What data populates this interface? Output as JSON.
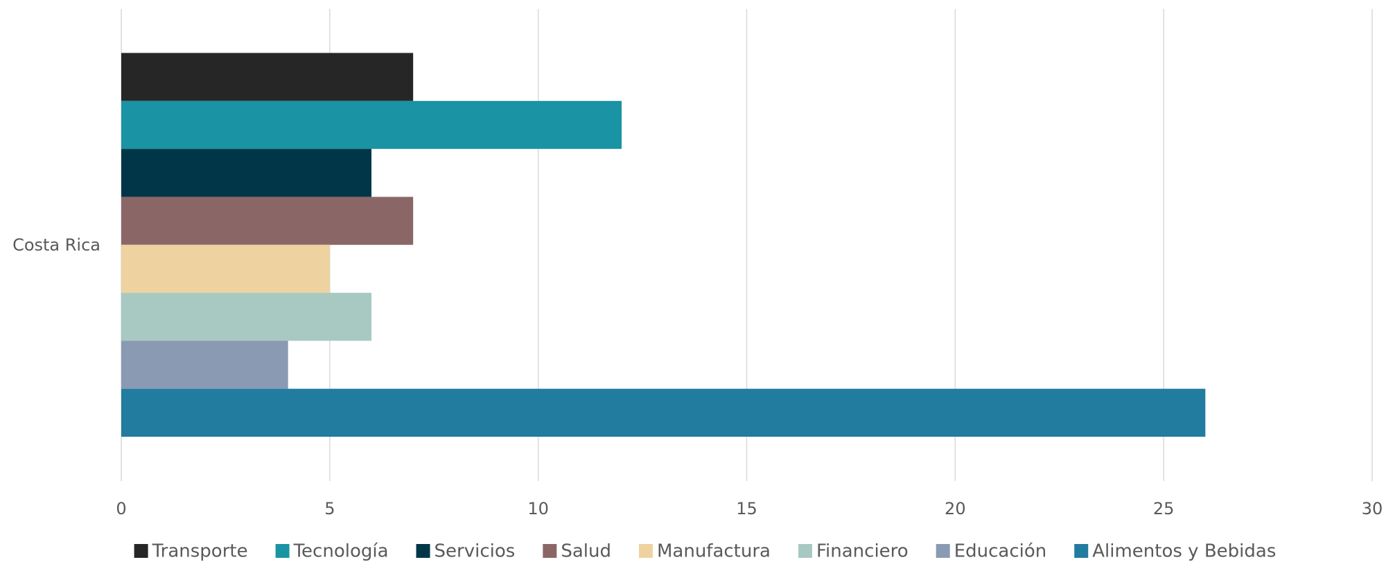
{
  "chart_data": {
    "type": "hbar",
    "categories": [
      "Costa Rica"
    ],
    "series": [
      {
        "name": "Transporte",
        "color": "#262626",
        "values": [
          7
        ]
      },
      {
        "name": "Tecnología",
        "color": "#1a93a4",
        "values": [
          12
        ]
      },
      {
        "name": "Servicios",
        "color": "#003648",
        "values": [
          6
        ]
      },
      {
        "name": "Salud",
        "color": "#8b6667",
        "values": [
          7
        ]
      },
      {
        "name": "Manufactura",
        "color": "#eed3a0",
        "values": [
          5
        ]
      },
      {
        "name": "Financiero",
        "color": "#a8c8c2",
        "values": [
          6
        ]
      },
      {
        "name": "Educación",
        "color": "#8a9ab3",
        "values": [
          4
        ]
      },
      {
        "name": "Alimentos y Bebidas",
        "color": "#217c9f",
        "values": [
          26
        ]
      }
    ],
    "xlim": [
      0,
      30
    ],
    "xticks": [
      0,
      5,
      10,
      15,
      20,
      25,
      30
    ],
    "grid": true,
    "legend": "bottom"
  }
}
